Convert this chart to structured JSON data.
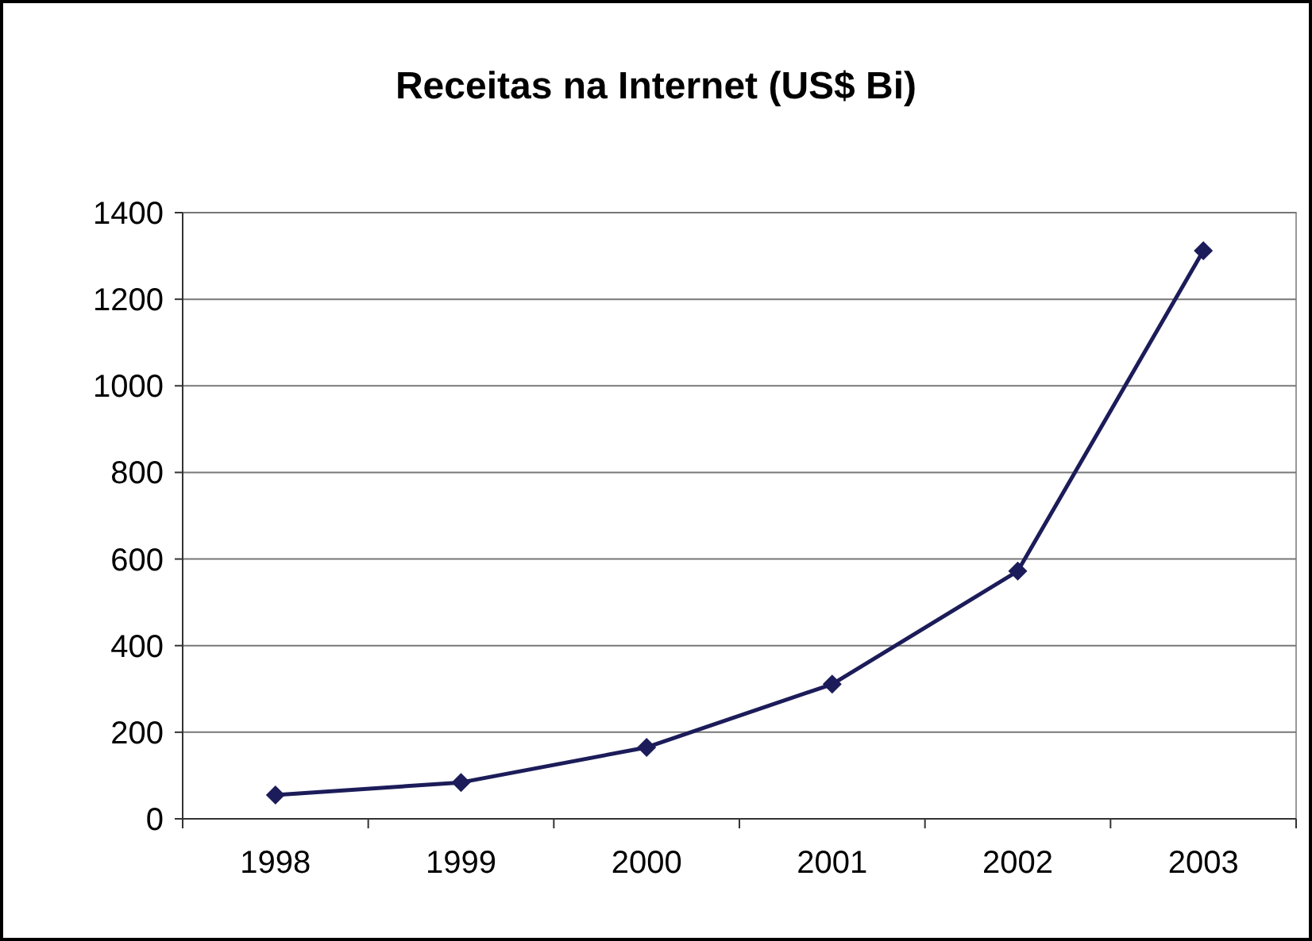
{
  "chart_data": {
    "type": "line",
    "title": "Receitas na Internet (US$ Bi)",
    "categories": [
      "1998",
      "1999",
      "2000",
      "2001",
      "2002",
      "2003"
    ],
    "series": [
      {
        "color": "#1c1c5a",
        "values": [
          55,
          84,
          165,
          311,
          572,
          1312
        ]
      }
    ],
    "ylim": [
      0,
      1400
    ],
    "yticks": [
      0,
      200,
      400,
      600,
      800,
      1000,
      1200,
      1400
    ],
    "grid": "y",
    "marker": "diamond",
    "line_style": "solid"
  }
}
